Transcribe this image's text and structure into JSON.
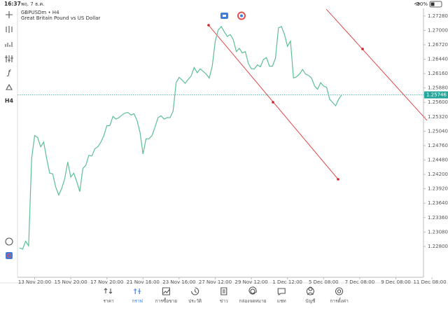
{
  "status_bar": {
    "time": "16:37",
    "date": "พฤ. 7 ธ.ค.",
    "battery": "30%"
  },
  "toolbar": {
    "timeframe": "H4"
  },
  "chart_data": {
    "type": "line",
    "title": "GBPUSDm • H4",
    "subtitle": "Great Britain Pound vs US Dollar",
    "categories": [
      null,
      null,
      null,
      null,
      null,
      "13 Nov 20:00",
      null,
      null,
      null,
      null,
      null,
      null,
      null,
      null,
      null,
      null,
      null,
      "15 Nov 20:00",
      null,
      null,
      null,
      null,
      null,
      null,
      null,
      null,
      null,
      null,
      null,
      "17 Nov 20:00",
      null,
      null,
      null,
      null,
      null,
      null,
      null,
      null,
      null,
      null,
      null,
      "21 Nov 16:00",
      null,
      null,
      null,
      null,
      null,
      null,
      null,
      null,
      null,
      null,
      null,
      "23 Nov 16:00",
      null,
      null,
      null,
      null,
      null,
      null,
      null,
      null,
      null,
      null,
      null,
      "27 Nov 12:00",
      null,
      null,
      null,
      null,
      null,
      null,
      null,
      null,
      null,
      null,
      null,
      "29 Nov 12:00",
      null,
      null,
      null,
      null,
      null,
      null,
      null,
      null,
      null,
      null,
      null,
      "1 Dec 12:00",
      null,
      null,
      null,
      null,
      null,
      null,
      null,
      null,
      null,
      null,
      null,
      "5 Dec 08:00",
      null,
      null,
      null,
      null,
      null,
      null,
      null,
      null,
      null,
      null,
      null,
      "7 Dec 08:00",
      null,
      null,
      null,
      null,
      null,
      null,
      null,
      null,
      null,
      null,
      null,
      "9 Dec 08:00",
      null,
      null,
      null,
      null,
      null,
      null,
      null,
      null,
      null,
      null,
      null,
      "11 Dec 08:00"
    ],
    "series": [
      {
        "color": "#5cbf95",
        "values": [
          1.22773,
          1.22747,
          1.22901,
          1.22811,
          1.24506,
          1.24956,
          1.24917,
          1.24737,
          1.24827,
          1.24506,
          1.24224,
          1.24211,
          1.23954,
          1.238,
          1.23929,
          1.24121,
          1.24442,
          1.24147,
          1.24224,
          1.24057,
          1.23865,
          1.24314,
          1.24378,
          1.24571,
          1.24558,
          1.24699,
          1.24737,
          1.24827,
          1.24956,
          1.25149,
          1.25149,
          1.25328,
          1.25277,
          1.25303,
          1.25354,
          1.25393,
          1.25405,
          1.25354,
          1.2538,
          1.25251,
          1.2502,
          1.24596,
          1.24892,
          1.24892,
          1.24956,
          1.25123,
          1.25303,
          1.25341,
          1.25277,
          1.25303,
          1.25303,
          1.25431,
          1.25983,
          1.26086,
          1.26035,
          1.2597,
          1.26047,
          1.26112,
          1.26278,
          1.26176,
          1.26253,
          1.26201,
          1.2615,
          1.26073,
          1.26304,
          1.26792,
          1.2701,
          1.27075,
          1.26972,
          1.26882,
          1.2692,
          1.26818,
          1.26587,
          1.26651,
          1.26561,
          1.26587,
          1.26356,
          1.26253,
          1.26253,
          1.2633,
          1.26291,
          1.26433,
          1.26471,
          1.26304,
          1.26304,
          1.26458,
          1.27049,
          1.27075,
          1.2692,
          1.26689,
          1.26792,
          1.26073,
          1.26099,
          1.2615,
          1.2624,
          1.2615,
          1.26124,
          1.26073,
          1.25919,
          1.25855,
          1.25983,
          1.25919,
          1.25893,
          1.25662,
          1.25598,
          1.25534,
          1.25662,
          1.25746,
          null,
          null,
          null,
          null,
          null,
          null,
          null,
          null,
          null,
          null,
          null,
          null,
          null,
          null,
          null,
          null,
          null,
          null,
          null,
          null,
          null,
          null,
          null,
          null,
          null,
          null,
          null,
          null,
          null,
          null
        ]
      }
    ],
    "ylim": [
      1.222,
      1.274
    ],
    "yticks": [
      {
        "value": 1.2728,
        "label": "1.27280"
      },
      {
        "value": 1.27,
        "label": "1.27000"
      },
      {
        "value": 1.2672,
        "label": "1.26720"
      },
      {
        "value": 1.2644,
        "label": "1.26440"
      },
      {
        "value": 1.2616,
        "label": "1.26160"
      },
      {
        "value": 1.2588,
        "label": "1.25880"
      },
      {
        "value": 1.256,
        "label": "1.25600"
      },
      {
        "value": 1.2532,
        "label": "1.25320"
      },
      {
        "value": 1.2504,
        "label": "1.25040"
      },
      {
        "value": 1.2476,
        "label": "1.24760"
      },
      {
        "value": 1.2448,
        "label": "1.24480"
      },
      {
        "value": 1.242,
        "label": "1.24200"
      },
      {
        "value": 1.2392,
        "label": "1.23920"
      },
      {
        "value": 1.2364,
        "label": "1.23640"
      },
      {
        "value": 1.2336,
        "label": "1.23360"
      },
      {
        "value": 1.2308,
        "label": "1.23080"
      },
      {
        "value": 1.228,
        "label": "1.22800"
      }
    ],
    "current_price": 1.25746,
    "current_price_color": "#26a69a"
  },
  "tab_bar": {
    "tabs": [
      "ราคา",
      "กราฟ",
      "การซื้อขาย",
      "ประวัติ",
      "ข่าว",
      "กล่องจดหมาย",
      "แชท",
      "บัญชี",
      "การตั้งค่า"
    ],
    "active": 1,
    "active_color": "#2f7ff0"
  }
}
